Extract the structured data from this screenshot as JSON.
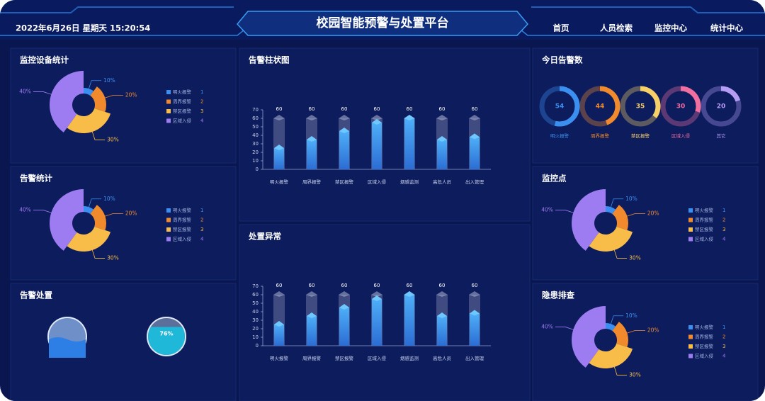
{
  "header": {
    "datetime": "2022年6月26日 星期天 15:20:54",
    "title": "校园智能预警与处置平台",
    "nav": [
      "首页",
      "人员检索",
      "监控中心",
      "统计中心"
    ]
  },
  "chart_data": [
    {
      "type": "pie",
      "title": "监控设备统计",
      "categories": [
        "明火报警",
        "周界报警",
        "禁区报警",
        "区域入侵"
      ],
      "values": [
        10,
        20,
        30,
        40
      ],
      "value_labels": [
        "10%",
        "20%",
        "30%",
        "40%"
      ],
      "legend_numbers": [
        1,
        2,
        3,
        4
      ],
      "colors": [
        "#3b8ff0",
        "#f08a2c",
        "#f7bd48",
        "#9d7cf2"
      ]
    },
    {
      "type": "pie",
      "title": "告警统计",
      "categories": [
        "明火报警",
        "周界报警",
        "禁区报警",
        "区域入侵"
      ],
      "values": [
        10,
        20,
        30,
        40
      ],
      "value_labels": [
        "10%",
        "20%",
        "30%",
        "40%"
      ],
      "legend_numbers": [
        1,
        2,
        3,
        4
      ],
      "colors": [
        "#3b8ff0",
        "#f08a2c",
        "#f7bd48",
        "#9d7cf2"
      ]
    },
    {
      "type": "liquid",
      "title": "告警处置",
      "values": [
        76
      ],
      "value_labels": [
        "76%"
      ],
      "colors": [
        "#1fb8d8"
      ]
    },
    {
      "type": "bar",
      "title": "告警柱状图",
      "categories": [
        "明火报警",
        "周界报警",
        "禁区报警",
        "区域入侵",
        "烟感监测",
        "高危人员",
        "出入管理"
      ],
      "ylim": [
        0,
        70
      ],
      "yticks": [
        0,
        10,
        20,
        30,
        40,
        50,
        60,
        70
      ],
      "series": [
        {
          "color": "#7d86b0",
          "values": [
            60,
            60,
            60,
            60,
            60,
            60,
            60
          ]
        },
        {
          "color": "#3a8fe8",
          "values": [
            25,
            35,
            45,
            55,
            60,
            35,
            38
          ]
        }
      ]
    },
    {
      "type": "bar",
      "title": "处置异常",
      "categories": [
        "明火报警",
        "周界报警",
        "禁区报警",
        "区域入侵",
        "烟感监测",
        "高危人员",
        "出入管理"
      ],
      "ylim": [
        0,
        70
      ],
      "yticks": [
        0,
        10,
        20,
        30,
        40,
        50,
        60,
        70
      ],
      "series": [
        {
          "color": "#7d86b0",
          "values": [
            60,
            60,
            60,
            60,
            60,
            60,
            60
          ]
        },
        {
          "color": "#3a8fe8",
          "values": [
            25,
            35,
            45,
            55,
            60,
            35,
            38
          ]
        }
      ]
    },
    {
      "type": "rings",
      "title": "今日告警数",
      "categories": [
        "明火报警",
        "周界报警",
        "禁区报警",
        "区域入侵",
        "其它"
      ],
      "values": [
        54,
        44,
        35,
        30,
        20
      ],
      "colors": [
        "#3b8ff0",
        "#f08a2c",
        "#f7d068",
        "#f06ea0",
        "#b59cf5"
      ]
    },
    {
      "type": "pie",
      "title": "监控点",
      "categories": [
        "明火报警",
        "周界报警",
        "禁区报警",
        "区域入侵"
      ],
      "values": [
        10,
        20,
        30,
        40
      ],
      "value_labels": [
        "10%",
        "20%",
        "30%",
        "40%"
      ],
      "legend_numbers": [
        1,
        2,
        3,
        4
      ],
      "colors": [
        "#3b8ff0",
        "#f08a2c",
        "#f7bd48",
        "#9d7cf2"
      ]
    },
    {
      "type": "pie",
      "title": "隐患排查",
      "categories": [
        "明火报警",
        "周界报警",
        "禁区报警",
        "区域入侵"
      ],
      "values": [
        10,
        20,
        30,
        40
      ],
      "value_labels": [
        "10%",
        "20%",
        "30%",
        "40%"
      ],
      "legend_numbers": [
        1,
        2,
        3,
        4
      ],
      "colors": [
        "#3b8ff0",
        "#f08a2c",
        "#f7bd48",
        "#9d7cf2"
      ]
    }
  ]
}
